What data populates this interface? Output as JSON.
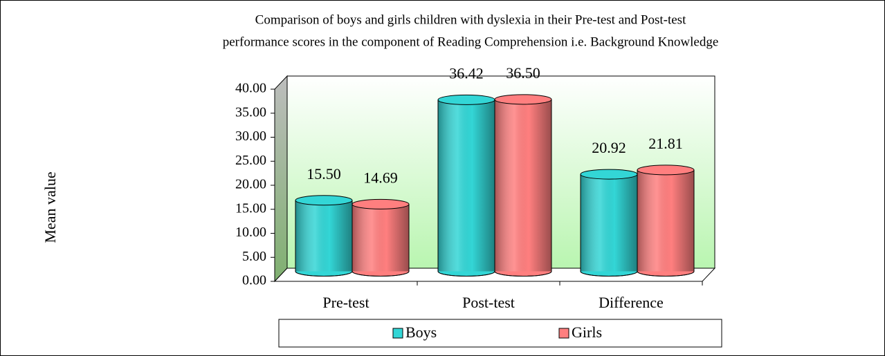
{
  "chart_data": {
    "type": "bar3d",
    "title": [
      "Comparison of boys and girls children with dyslexia  in their Pre-test and Post-test",
      "performance scores in the component of Reading Comprehension i.e. Background Knowledge"
    ],
    "ylabel": "Mean value",
    "categories": [
      "Pre-test",
      "Post-test",
      "Difference"
    ],
    "series": [
      {
        "name": "Boys",
        "color": "#33d6d6",
        "values": [
          15.5,
          36.42,
          20.92
        ],
        "value_labels": [
          "15.50",
          "36.42",
          "20.92"
        ]
      },
      {
        "name": "Girls",
        "color": "#ff7f7f",
        "values": [
          14.69,
          36.5,
          21.81
        ],
        "value_labels": [
          "14.69",
          "36.50",
          "21.81"
        ]
      }
    ],
    "ylim": [
      0,
      40
    ],
    "yticks": [
      {
        "value": 0,
        "label": "0.00"
      },
      {
        "value": 5,
        "label": "5.00"
      },
      {
        "value": 10,
        "label": "10.00"
      },
      {
        "value": 15,
        "label": "15.00"
      },
      {
        "value": 20,
        "label": "20.00"
      },
      {
        "value": 25,
        "label": "25.00"
      },
      {
        "value": 30,
        "label": "30.00"
      },
      {
        "value": 35,
        "label": "35.00"
      },
      {
        "value": 40,
        "label": "40.00"
      }
    ],
    "legend": "bottom"
  }
}
